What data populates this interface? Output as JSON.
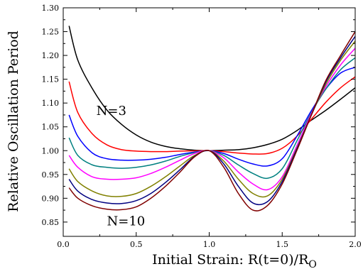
{
  "chart_data": {
    "type": "line",
    "xlabel": "Initial Strain: R(t=0)/R",
    "xlabel_sub": "O",
    "ylabel": "Relative Oscillation Period",
    "xlim": [
      0.0,
      2.0
    ],
    "ylim": [
      0.82,
      1.3
    ],
    "x_ticks": [
      "0.0",
      "0.5",
      "1.0",
      "1.5",
      "2.0"
    ],
    "x_tick_values": [
      0.0,
      0.5,
      1.0,
      1.5,
      2.0
    ],
    "y_ticks": [
      "0.85",
      "0.90",
      "0.95",
      "1.00",
      "1.05",
      "1.10",
      "1.15",
      "1.20",
      "1.25",
      "1.30"
    ],
    "y_tick_values": [
      0.85,
      0.9,
      0.95,
      1.0,
      1.05,
      1.1,
      1.15,
      1.2,
      1.25,
      1.3
    ],
    "grid": false,
    "annotations": [
      {
        "text": "N=3",
        "x": 0.33,
        "y": 1.075
      },
      {
        "text": "N=10",
        "x": 0.43,
        "y": 0.843
      }
    ],
    "series": [
      {
        "color": "#000000",
        "points": [
          [
            0.04,
            1.262
          ],
          [
            0.1,
            1.19
          ],
          [
            0.2,
            1.13
          ],
          [
            0.3,
            1.085
          ],
          [
            0.4,
            1.055
          ],
          [
            0.5,
            1.033
          ],
          [
            0.6,
            1.018
          ],
          [
            0.7,
            1.009
          ],
          [
            0.8,
            1.004
          ],
          [
            0.9,
            1.001
          ],
          [
            1.0,
            1.0
          ],
          [
            1.1,
            1.001
          ],
          [
            1.2,
            1.002
          ],
          [
            1.3,
            1.006
          ],
          [
            1.4,
            1.013
          ],
          [
            1.5,
            1.024
          ],
          [
            1.6,
            1.042
          ],
          [
            1.7,
            1.064
          ],
          [
            1.8,
            1.085
          ],
          [
            1.9,
            1.108
          ],
          [
            2.0,
            1.132
          ]
        ]
      },
      {
        "color": "#ff0000",
        "points": [
          [
            0.04,
            1.145
          ],
          [
            0.1,
            1.08
          ],
          [
            0.2,
            1.035
          ],
          [
            0.3,
            1.012
          ],
          [
            0.4,
            1.002
          ],
          [
            0.5,
            0.999
          ],
          [
            0.6,
            0.998
          ],
          [
            0.7,
            0.998
          ],
          [
            0.8,
            0.999
          ],
          [
            0.9,
            0.9995
          ],
          [
            1.0,
            1.0
          ],
          [
            1.1,
            0.998
          ],
          [
            1.2,
            0.995
          ],
          [
            1.3,
            0.993
          ],
          [
            1.4,
            0.994
          ],
          [
            1.5,
            1.005
          ],
          [
            1.6,
            1.03
          ],
          [
            1.7,
            1.066
          ],
          [
            1.8,
            1.102
          ],
          [
            1.9,
            1.132
          ],
          [
            2.0,
            1.155
          ]
        ]
      },
      {
        "color": "#0000ff",
        "points": [
          [
            0.04,
            1.075
          ],
          [
            0.1,
            1.03
          ],
          [
            0.2,
            0.995
          ],
          [
            0.3,
            0.983
          ],
          [
            0.4,
            0.98
          ],
          [
            0.5,
            0.98
          ],
          [
            0.6,
            0.982
          ],
          [
            0.7,
            0.986
          ],
          [
            0.8,
            0.992
          ],
          [
            0.9,
            0.997
          ],
          [
            1.0,
            1.0
          ],
          [
            1.1,
            0.994
          ],
          [
            1.2,
            0.982
          ],
          [
            1.3,
            0.972
          ],
          [
            1.4,
            0.968
          ],
          [
            1.5,
            0.983
          ],
          [
            1.6,
            1.03
          ],
          [
            1.7,
            1.084
          ],
          [
            1.8,
            1.13
          ],
          [
            1.9,
            1.163
          ],
          [
            2.0,
            1.175
          ]
        ]
      },
      {
        "color": "#008080",
        "points": [
          [
            0.04,
            1.027
          ],
          [
            0.1,
            0.99
          ],
          [
            0.2,
            0.97
          ],
          [
            0.3,
            0.965
          ],
          [
            0.4,
            0.963
          ],
          [
            0.5,
            0.965
          ],
          [
            0.6,
            0.97
          ],
          [
            0.7,
            0.978
          ],
          [
            0.8,
            0.988
          ],
          [
            0.9,
            0.996
          ],
          [
            1.0,
            1.0
          ],
          [
            1.1,
            0.99
          ],
          [
            1.2,
            0.97
          ],
          [
            1.3,
            0.952
          ],
          [
            1.4,
            0.942
          ],
          [
            1.5,
            0.962
          ],
          [
            1.6,
            1.02
          ],
          [
            1.7,
            1.08
          ],
          [
            1.8,
            1.13
          ],
          [
            1.9,
            1.17
          ],
          [
            2.0,
            1.195
          ]
        ]
      },
      {
        "color": "#ff00ff",
        "points": [
          [
            0.04,
            0.99
          ],
          [
            0.1,
            0.965
          ],
          [
            0.2,
            0.945
          ],
          [
            0.3,
            0.94
          ],
          [
            0.4,
            0.94
          ],
          [
            0.5,
            0.943
          ],
          [
            0.6,
            0.952
          ],
          [
            0.7,
            0.965
          ],
          [
            0.8,
            0.98
          ],
          [
            0.9,
            0.994
          ],
          [
            1.0,
            1.0
          ],
          [
            1.1,
            0.985
          ],
          [
            1.2,
            0.955
          ],
          [
            1.3,
            0.93
          ],
          [
            1.4,
            0.918
          ],
          [
            1.5,
            0.945
          ],
          [
            1.6,
            1.01
          ],
          [
            1.7,
            1.078
          ],
          [
            1.8,
            1.135
          ],
          [
            1.9,
            1.18
          ],
          [
            2.0,
            1.215
          ]
        ]
      },
      {
        "color": "#808000",
        "points": [
          [
            0.04,
            0.962
          ],
          [
            0.1,
            0.935
          ],
          [
            0.2,
            0.915
          ],
          [
            0.3,
            0.905
          ],
          [
            0.4,
            0.904
          ],
          [
            0.5,
            0.91
          ],
          [
            0.6,
            0.925
          ],
          [
            0.7,
            0.945
          ],
          [
            0.8,
            0.968
          ],
          [
            0.9,
            0.99
          ],
          [
            1.0,
            1.0
          ],
          [
            1.1,
            0.978
          ],
          [
            1.2,
            0.94
          ],
          [
            1.3,
            0.91
          ],
          [
            1.4,
            0.905
          ],
          [
            1.5,
            0.94
          ],
          [
            1.6,
            1.005
          ],
          [
            1.7,
            1.075
          ],
          [
            1.8,
            1.14
          ],
          [
            1.9,
            1.19
          ],
          [
            2.0,
            1.23
          ]
        ]
      },
      {
        "color": "#000080",
        "points": [
          [
            0.04,
            0.94
          ],
          [
            0.1,
            0.915
          ],
          [
            0.2,
            0.897
          ],
          [
            0.3,
            0.89
          ],
          [
            0.4,
            0.889
          ],
          [
            0.5,
            0.895
          ],
          [
            0.6,
            0.91
          ],
          [
            0.7,
            0.933
          ],
          [
            0.8,
            0.96
          ],
          [
            0.9,
            0.988
          ],
          [
            1.0,
            1.0
          ],
          [
            1.1,
            0.972
          ],
          [
            1.2,
            0.925
          ],
          [
            1.3,
            0.89
          ],
          [
            1.4,
            0.893
          ],
          [
            1.5,
            0.935
          ],
          [
            1.6,
            1.003
          ],
          [
            1.7,
            1.075
          ],
          [
            1.8,
            1.145
          ],
          [
            1.9,
            1.195
          ],
          [
            2.0,
            1.24
          ]
        ]
      },
      {
        "color": "#800000",
        "points": [
          [
            0.04,
            0.922
          ],
          [
            0.1,
            0.9
          ],
          [
            0.2,
            0.884
          ],
          [
            0.3,
            0.877
          ],
          [
            0.4,
            0.876
          ],
          [
            0.5,
            0.882
          ],
          [
            0.6,
            0.9
          ],
          [
            0.7,
            0.925
          ],
          [
            0.8,
            0.955
          ],
          [
            0.9,
            0.987
          ],
          [
            1.0,
            1.0
          ],
          [
            1.1,
            0.965
          ],
          [
            1.2,
            0.91
          ],
          [
            1.3,
            0.875
          ],
          [
            1.4,
            0.885
          ],
          [
            1.5,
            0.93
          ],
          [
            1.6,
            1.0
          ],
          [
            1.7,
            1.075
          ],
          [
            1.8,
            1.148
          ],
          [
            1.9,
            1.2
          ],
          [
            2.0,
            1.25
          ]
        ]
      }
    ]
  }
}
